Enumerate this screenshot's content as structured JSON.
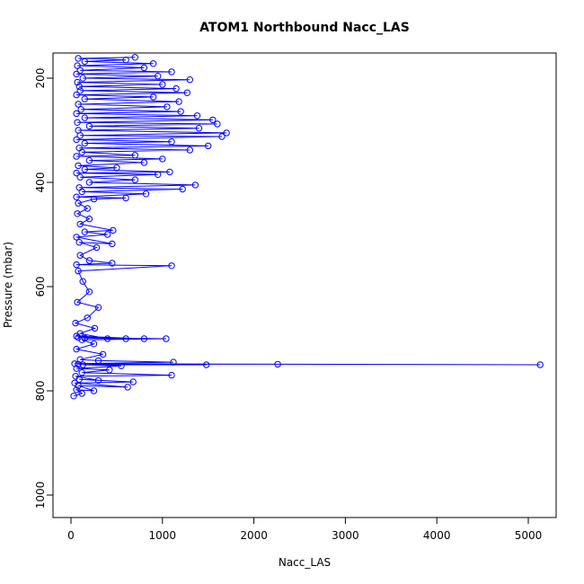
{
  "chart_data": {
    "type": "scatter",
    "title": "ATOM1 Northbound Nacc_LAS",
    "xlabel": "Nacc_LAS",
    "ylabel": "Pressure (mbar)",
    "xlim": [
      0,
      5200
    ],
    "ylim": [
      1030,
      160
    ],
    "y_reversed": true,
    "grid": false,
    "x_ticks": [
      0,
      1000,
      2000,
      3000,
      4000,
      5000
    ],
    "y_ticks": [
      200,
      400,
      600,
      800,
      1000
    ],
    "series_color": "#0000ff",
    "marker": "open-circle",
    "connected": true,
    "series": [
      {
        "points": [
          [
            30,
            810
          ],
          [
            120,
            805
          ],
          [
            60,
            798
          ],
          [
            250,
            800
          ],
          [
            80,
            790
          ],
          [
            620,
            793
          ],
          [
            40,
            785
          ],
          [
            680,
            783
          ],
          [
            90,
            778
          ],
          [
            300,
            780
          ],
          [
            50,
            772
          ],
          [
            1100,
            770
          ],
          [
            120,
            765
          ],
          [
            420,
            760
          ],
          [
            60,
            757
          ],
          [
            550,
            752
          ],
          [
            130,
            750
          ],
          [
            1480,
            750
          ],
          [
            80,
            749
          ],
          [
            2260,
            749
          ],
          [
            5130,
            750
          ],
          [
            40,
            748
          ],
          [
            1120,
            745
          ],
          [
            300,
            742
          ],
          [
            100,
            740
          ],
          [
            350,
            730
          ],
          [
            60,
            720
          ],
          [
            250,
            710
          ],
          [
            120,
            702
          ],
          [
            1040,
            700
          ],
          [
            80,
            698
          ],
          [
            600,
            700
          ],
          [
            150,
            699
          ],
          [
            800,
            700
          ],
          [
            60,
            695
          ],
          [
            400,
            700
          ],
          [
            100,
            690
          ],
          [
            260,
            680
          ],
          [
            50,
            670
          ],
          [
            180,
            660
          ],
          [
            300,
            640
          ],
          [
            70,
            630
          ],
          [
            200,
            610
          ],
          [
            130,
            590
          ],
          [
            80,
            570
          ],
          [
            1100,
            560
          ],
          [
            60,
            558
          ],
          [
            450,
            555
          ],
          [
            200,
            550
          ],
          [
            100,
            540
          ],
          [
            280,
            525
          ],
          [
            90,
            515
          ],
          [
            450,
            518
          ],
          [
            60,
            505
          ],
          [
            400,
            500
          ],
          [
            150,
            495
          ],
          [
            460,
            492
          ],
          [
            100,
            480
          ],
          [
            200,
            470
          ],
          [
            70,
            460
          ],
          [
            180,
            450
          ],
          [
            80,
            440
          ],
          [
            250,
            432
          ],
          [
            600,
            430
          ],
          [
            60,
            428
          ],
          [
            820,
            422
          ],
          [
            120,
            418
          ],
          [
            1220,
            413
          ],
          [
            90,
            410
          ],
          [
            1360,
            405
          ],
          [
            200,
            400
          ],
          [
            700,
            395
          ],
          [
            100,
            390
          ],
          [
            950,
            385
          ],
          [
            60,
            382
          ],
          [
            1080,
            380
          ],
          [
            150,
            375
          ],
          [
            500,
            372
          ],
          [
            80,
            368
          ],
          [
            800,
            362
          ],
          [
            200,
            358
          ],
          [
            1000,
            355
          ],
          [
            60,
            350
          ],
          [
            700,
            348
          ],
          [
            120,
            342
          ],
          [
            1300,
            338
          ],
          [
            90,
            334
          ],
          [
            1500,
            330
          ],
          [
            150,
            325
          ],
          [
            1100,
            322
          ],
          [
            60,
            318
          ],
          [
            1650,
            312
          ],
          [
            100,
            310
          ],
          [
            1700,
            305
          ],
          [
            80,
            300
          ],
          [
            1400,
            296
          ],
          [
            200,
            292
          ],
          [
            1600,
            288
          ],
          [
            70,
            285
          ],
          [
            1550,
            280
          ],
          [
            150,
            276
          ],
          [
            1380,
            272
          ],
          [
            60,
            268
          ],
          [
            1200,
            264
          ],
          [
            110,
            260
          ],
          [
            1050,
            255
          ],
          [
            80,
            250
          ],
          [
            1180,
            245
          ],
          [
            150,
            240
          ],
          [
            900,
            236
          ],
          [
            60,
            232
          ],
          [
            1270,
            228
          ],
          [
            100,
            224
          ],
          [
            1150,
            220
          ],
          [
            90,
            216
          ],
          [
            1000,
            212
          ],
          [
            70,
            208
          ],
          [
            1300,
            203
          ],
          [
            130,
            200
          ],
          [
            950,
            196
          ],
          [
            60,
            192
          ],
          [
            1100,
            188
          ],
          [
            100,
            185
          ],
          [
            800,
            180
          ],
          [
            70,
            176
          ],
          [
            900,
            172
          ],
          [
            150,
            168
          ],
          [
            600,
            165
          ],
          [
            80,
            162
          ],
          [
            700,
            160
          ]
        ]
      }
    ]
  }
}
